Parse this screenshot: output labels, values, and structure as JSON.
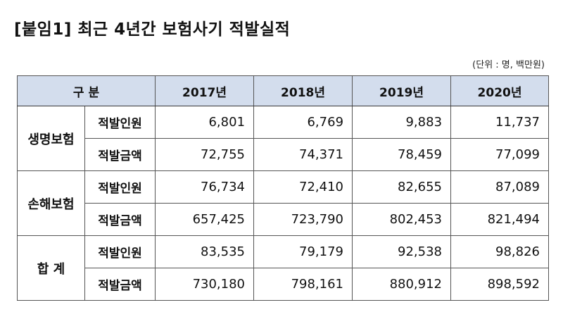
{
  "title": "[붙임1] 최근 4년간 보험사기 적발실적",
  "unit_note": "(단위 : 명, 백만원)",
  "header": {
    "category": "구 분",
    "years": [
      "2017년",
      "2018년",
      "2019년",
      "2020년"
    ]
  },
  "groups": [
    {
      "name": "생명보험",
      "rows": [
        {
          "item": "적발인원",
          "values": [
            "6,801",
            "6,769",
            "9,883",
            "11,737"
          ]
        },
        {
          "item": "적발금액",
          "values": [
            "72,755",
            "74,371",
            "78,459",
            "77,099"
          ]
        }
      ]
    },
    {
      "name": "손해보험",
      "rows": [
        {
          "item": "적발인원",
          "values": [
            "76,734",
            "72,410",
            "82,655",
            "87,089"
          ]
        },
        {
          "item": "적발금액",
          "values": [
            "657,425",
            "723,790",
            "802,453",
            "821,494"
          ]
        }
      ]
    },
    {
      "name": "합 계",
      "rows": [
        {
          "item": "적발인원",
          "values": [
            "83,535",
            "79,179",
            "92,538",
            "98,826"
          ]
        },
        {
          "item": "적발금액",
          "values": [
            "730,180",
            "798,161",
            "880,912",
            "898,592"
          ]
        }
      ]
    }
  ]
}
